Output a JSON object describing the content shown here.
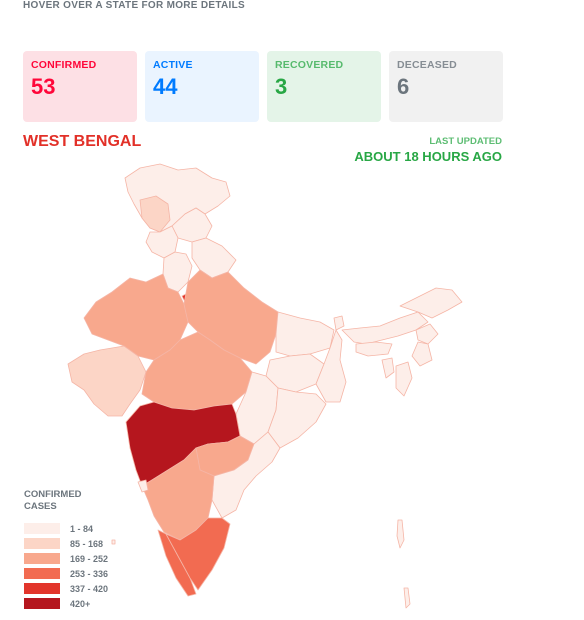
{
  "hint": "HOVER OVER A STATE FOR MORE DETAILS",
  "stats": {
    "confirmed": {
      "label": "CONFIRMED",
      "value": "53"
    },
    "active": {
      "label": "ACTIVE",
      "value": "44"
    },
    "recovered": {
      "label": "RECOVERED",
      "value": "3"
    },
    "deceased": {
      "label": "DECEASED",
      "value": "6"
    }
  },
  "selected_state": "WEST BENGAL",
  "last_updated": {
    "label": "LAST UPDATED",
    "value": "ABOUT 18 HOURS AGO"
  },
  "legend": {
    "title_line1": "CONFIRMED",
    "title_line2": "CASES",
    "items": [
      {
        "label": "1 - 84",
        "color": "#fdeee9"
      },
      {
        "label": "85 - 168",
        "color": "#fcd5c6"
      },
      {
        "label": "169 - 252",
        "color": "#f8a88d"
      },
      {
        "label": "253 - 336",
        "color": "#f26b51"
      },
      {
        "label": "337 - 420",
        "color": "#e2352b"
      },
      {
        "label": "420+",
        "color": "#b5161e"
      }
    ]
  },
  "map_colors": {
    "border": "#f5b5a6",
    "level1": "#fdeee9",
    "level2": "#fcd5c6",
    "level3": "#f8a88d",
    "level4": "#f26b51",
    "level5": "#e2352b",
    "level6": "#b5161e"
  }
}
